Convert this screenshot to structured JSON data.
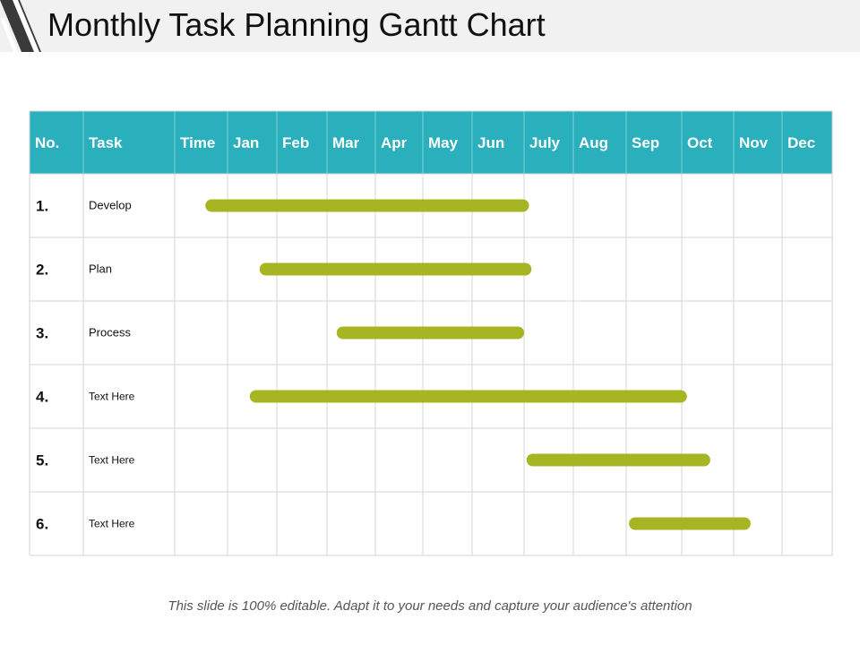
{
  "title": "Monthly Task Planning Gantt Chart",
  "footer": "This slide is 100% editable. Adapt it to your needs and capture your audience's attention",
  "colors": {
    "header": "#2aafbd",
    "bar": "#a8b522",
    "grid": "#d6d6d6",
    "title_band": "#f1f1f1"
  },
  "icons": {
    "logo": "diagonal-stripes-logo-icon"
  },
  "chart_data": {
    "type": "gantt",
    "columns": [
      "No.",
      "Task",
      "Time",
      "Jan",
      "Feb",
      "Mar",
      "Apr",
      "May",
      "Jun",
      "July",
      "Aug",
      "Sep",
      "Oct",
      "Nov",
      "Dec"
    ],
    "months": [
      "Jan",
      "Feb",
      "Mar",
      "Apr",
      "May",
      "Jun",
      "July",
      "Aug",
      "Sep",
      "Oct",
      "Nov",
      "Dec"
    ],
    "tasks": [
      {
        "no": "1.",
        "name": "Develop",
        "start": -0.45,
        "end": 6.1
      },
      {
        "no": "2.",
        "name": "Plan",
        "start": 0.65,
        "end": 6.15
      },
      {
        "no": "3.",
        "name": "Process",
        "start": 2.2,
        "end": 6.0
      },
      {
        "no": "4.",
        "name": "Text Here",
        "start": 0.45,
        "end": 9.1
      },
      {
        "no": "5.",
        "name": "Text Here",
        "start": 6.05,
        "end": 9.55
      },
      {
        "no": "6.",
        "name": "Text Here",
        "start": 8.05,
        "end": 10.35
      }
    ]
  }
}
